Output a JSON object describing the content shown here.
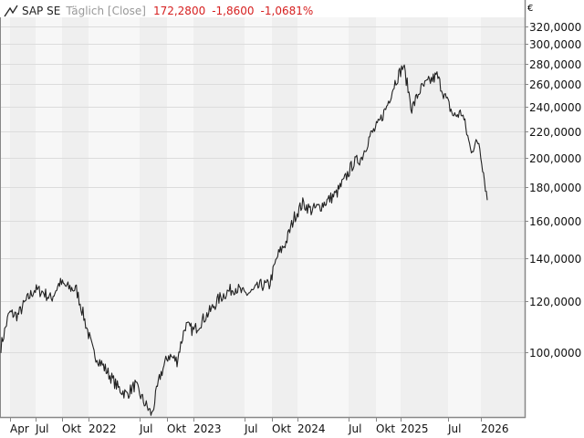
{
  "header": {
    "icon": "line-chart-icon",
    "name": "SAP SE",
    "mode": "Täglich [Close]",
    "last": "172,2800",
    "change": "-1,8600",
    "change_pct": "-1,0681%",
    "change_color": "#d62020"
  },
  "axis": {
    "currency": "€"
  },
  "colors": {
    "line": "#222222",
    "band_dark": "#efefef",
    "band_light": "#f7f7f7",
    "grid": "#dcdcdc",
    "axis": "#888888"
  },
  "chart_data": {
    "type": "line",
    "title": "SAP SE Täglich [Close]",
    "xlabel": "",
    "ylabel": "€",
    "y_scale": "log",
    "ylim": [
      80,
      330
    ],
    "grid": true,
    "legend_position": "none",
    "x_tick_labels": [
      "Apr",
      "Jul",
      "Okt",
      "2022",
      "Jul",
      "Okt",
      "2023",
      "Jul",
      "Okt",
      "2024",
      "Jul",
      "Okt",
      "2025",
      "Jul",
      "2026"
    ],
    "y_tick_labels": [
      "320,0000",
      "300,0000",
      "280,0000",
      "260,0000",
      "240,0000",
      "220,0000",
      "200,0000",
      "180,0000",
      "160,0000",
      "140,0000",
      "120,0000",
      "100,0000"
    ],
    "y_tick_values": [
      320,
      300,
      280,
      260,
      240,
      220,
      200,
      180,
      160,
      140,
      120,
      100
    ],
    "series": [
      {
        "name": "SAP SE Close",
        "points_note": "approximate monthly closes read from chart (EUR)",
        "x": [
          "2021-03",
          "2021-04",
          "2021-05",
          "2021-06",
          "2021-07",
          "2021-08",
          "2021-09",
          "2021-10",
          "2021-11",
          "2021-12",
          "2022-01",
          "2022-02",
          "2022-03",
          "2022-04",
          "2022-05",
          "2022-06",
          "2022-07",
          "2022-08",
          "2022-09",
          "2022-10",
          "2022-11",
          "2022-12",
          "2023-01",
          "2023-02",
          "2023-03",
          "2023-04",
          "2023-05",
          "2023-06",
          "2023-07",
          "2023-08",
          "2023-09",
          "2023-10",
          "2023-11",
          "2023-12",
          "2024-01",
          "2024-02",
          "2024-03",
          "2024-04",
          "2024-05",
          "2024-06",
          "2024-07",
          "2024-08",
          "2024-09",
          "2024-10",
          "2024-11",
          "2024-12",
          "2025-01",
          "2025-02",
          "2025-03",
          "2025-04",
          "2025-05",
          "2025-06",
          "2025-07",
          "2025-08",
          "2025-09",
          "2025-10",
          "2025-11",
          "2025-12",
          "2026-01"
        ],
        "values": [
          102,
          115,
          114,
          120,
          125,
          124,
          121,
          128,
          126,
          125,
          112,
          100,
          96,
          92,
          88,
          86,
          89,
          84,
          80,
          92,
          99,
          97,
          110,
          108,
          112,
          116,
          121,
          124,
          126,
          123,
          124,
          127,
          127,
          141,
          148,
          162,
          170,
          166,
          168,
          172,
          176,
          185,
          196,
          200,
          216,
          225,
          240,
          262,
          278,
          238,
          255,
          262,
          268,
          248,
          232,
          235,
          206,
          212,
          172
        ]
      }
    ]
  }
}
